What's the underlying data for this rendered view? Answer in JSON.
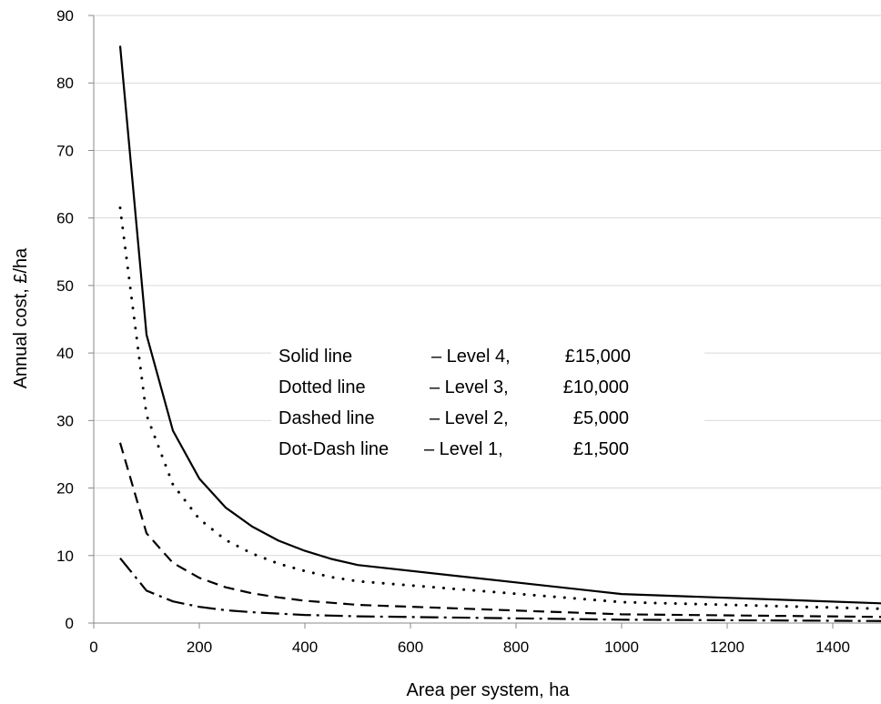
{
  "chart_data": {
    "type": "line",
    "title": "",
    "xlabel": "Area per system, ha",
    "ylabel": "Annual cost, £/ha",
    "xlim": [
      0,
      1500
    ],
    "ylim": [
      0,
      90
    ],
    "x_ticks": [
      0,
      200,
      400,
      600,
      800,
      1000,
      1200,
      1400
    ],
    "y_ticks": [
      0,
      10,
      20,
      30,
      40,
      50,
      60,
      70,
      80,
      90
    ],
    "grid": "horizontal",
    "axis_color": "#888888",
    "grid_color": "#d9d9d9",
    "line_color": "#000000",
    "legend": {
      "placement": "center",
      "entries": [
        {
          "style": "Solid line",
          "level": "– Level 4,",
          "cost": "£15,000"
        },
        {
          "style": "Dotted line",
          "level": "– Level 3,",
          "cost": "£10,000"
        },
        {
          "style": "Dashed line",
          "level": "– Level 2,",
          "cost": "£5,000"
        },
        {
          "style": "Dot-Dash line",
          "level": "– Level 1,",
          "cost": "£1,500"
        }
      ]
    },
    "series": [
      {
        "dash": "solid",
        "x": [
          50,
          100,
          150,
          200,
          250,
          300,
          350,
          400,
          450,
          500,
          1000,
          1500
        ],
        "y": [
          85.5,
          42.7,
          28.5,
          21.4,
          17.1,
          14.3,
          12.2,
          10.7,
          9.5,
          8.6,
          4.3,
          2.9
        ]
      },
      {
        "dash": "dotted",
        "x": [
          50,
          100,
          150,
          200,
          250,
          300,
          350,
          400,
          450,
          500,
          1000,
          1500
        ],
        "y": [
          61.5,
          30.8,
          20.5,
          15.4,
          12.3,
          10.3,
          8.8,
          7.7,
          6.8,
          6.2,
          3.1,
          2.1
        ]
      },
      {
        "dash": "dashed",
        "x": [
          50,
          100,
          150,
          200,
          250,
          300,
          350,
          400,
          450,
          500,
          1000,
          1500
        ],
        "y": [
          26.7,
          13.3,
          8.9,
          6.7,
          5.3,
          4.4,
          3.8,
          3.3,
          3.0,
          2.7,
          1.3,
          0.9
        ]
      },
      {
        "dash": "dotdash",
        "x": [
          50,
          100,
          150,
          200,
          250,
          300,
          350,
          400,
          450,
          500,
          1000,
          1500
        ],
        "y": [
          9.6,
          4.8,
          3.2,
          2.4,
          1.9,
          1.6,
          1.4,
          1.2,
          1.1,
          1.0,
          0.5,
          0.3
        ]
      }
    ]
  }
}
